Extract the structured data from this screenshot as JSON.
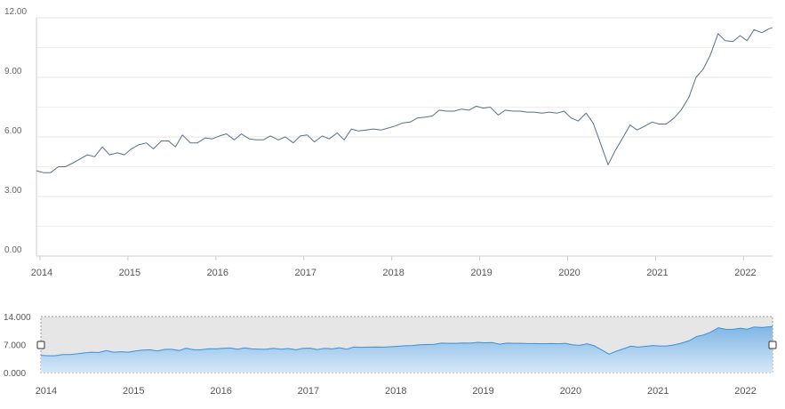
{
  "chart_data": {
    "type": "line",
    "title": "",
    "xlabel": "",
    "ylabel": "",
    "ylim": [
      0,
      12
    ],
    "yticks": [
      "0.00",
      "3.00",
      "6.00",
      "9.00",
      "12.00"
    ],
    "xlim": [
      2013.96,
      2022.33
    ],
    "xticks": [
      "2014",
      "2015",
      "2016",
      "2017",
      "2018",
      "2019",
      "2020",
      "2021",
      "2022"
    ],
    "grid": true,
    "legend": "none",
    "line_color": "#5a6e8c",
    "series": [
      {
        "x": [
          2013.96,
          2014.04,
          2014.12,
          2014.21,
          2014.29,
          2014.38,
          2014.46,
          2014.54,
          2014.62,
          2014.71,
          2014.79,
          2014.88,
          2014.96,
          2015.04,
          2015.12,
          2015.21,
          2015.29,
          2015.38,
          2015.46,
          2015.54,
          2015.62,
          2015.71,
          2015.79,
          2015.88,
          2015.96,
          2016.04,
          2016.12,
          2016.21,
          2016.29,
          2016.38,
          2016.46,
          2016.54,
          2016.62,
          2016.71,
          2016.79,
          2016.88,
          2016.96,
          2017.04,
          2017.12,
          2017.21,
          2017.29,
          2017.38,
          2017.46,
          2017.54,
          2017.62,
          2017.71,
          2017.79,
          2017.88,
          2017.96,
          2018.04,
          2018.12,
          2018.21,
          2018.29,
          2018.38,
          2018.46,
          2018.54,
          2018.62,
          2018.71,
          2018.79,
          2018.88,
          2018.96,
          2019.04,
          2019.12,
          2019.21,
          2019.29,
          2019.38,
          2019.46,
          2019.54,
          2019.62,
          2019.71,
          2019.79,
          2019.88,
          2019.96,
          2020.04,
          2020.12,
          2020.21,
          2020.29,
          2020.38,
          2020.46,
          2020.54,
          2020.62,
          2020.71,
          2020.79,
          2020.88,
          2020.96,
          2021.04,
          2021.12,
          2021.21,
          2021.29,
          2021.38,
          2021.46,
          2021.54,
          2021.62,
          2021.71,
          2021.79,
          2021.88,
          2021.96,
          2022.04,
          2022.12,
          2022.21,
          2022.29,
          2022.33
        ],
        "values": [
          4.3,
          4.2,
          4.2,
          4.5,
          4.5,
          4.7,
          4.9,
          5.1,
          5.0,
          5.5,
          5.1,
          5.2,
          5.1,
          5.4,
          5.6,
          5.7,
          5.4,
          5.8,
          5.8,
          5.5,
          6.1,
          5.7,
          5.7,
          5.95,
          5.9,
          6.05,
          6.15,
          5.85,
          6.15,
          5.9,
          5.85,
          5.85,
          6.05,
          5.85,
          6.0,
          5.7,
          6.05,
          6.1,
          5.75,
          6.05,
          5.9,
          6.2,
          5.85,
          6.4,
          6.3,
          6.35,
          6.4,
          6.35,
          6.45,
          6.55,
          6.7,
          6.75,
          6.95,
          7.0,
          7.05,
          7.35,
          7.3,
          7.3,
          7.4,
          7.35,
          7.55,
          7.45,
          7.5,
          7.1,
          7.35,
          7.3,
          7.3,
          7.25,
          7.25,
          7.2,
          7.25,
          7.2,
          7.3,
          6.95,
          6.8,
          7.2,
          6.7,
          5.6,
          4.6,
          5.3,
          5.9,
          6.6,
          6.35,
          6.55,
          6.75,
          6.65,
          6.65,
          6.95,
          7.35,
          8.0,
          9.0,
          9.4,
          10.1,
          11.2,
          10.85,
          10.8,
          11.1,
          10.85,
          11.4,
          11.25,
          11.45,
          11.5
        ]
      }
    ]
  },
  "navigator": {
    "yticks": [
      "0.000",
      "7.000",
      "14.000"
    ],
    "ylim": [
      0,
      14
    ],
    "xticks": [
      "2014",
      "2015",
      "2016",
      "2017",
      "2018",
      "2019",
      "2020",
      "2021",
      "2022"
    ],
    "fill_color": "#7fb6e6",
    "line_color": "#3f8fd6"
  }
}
